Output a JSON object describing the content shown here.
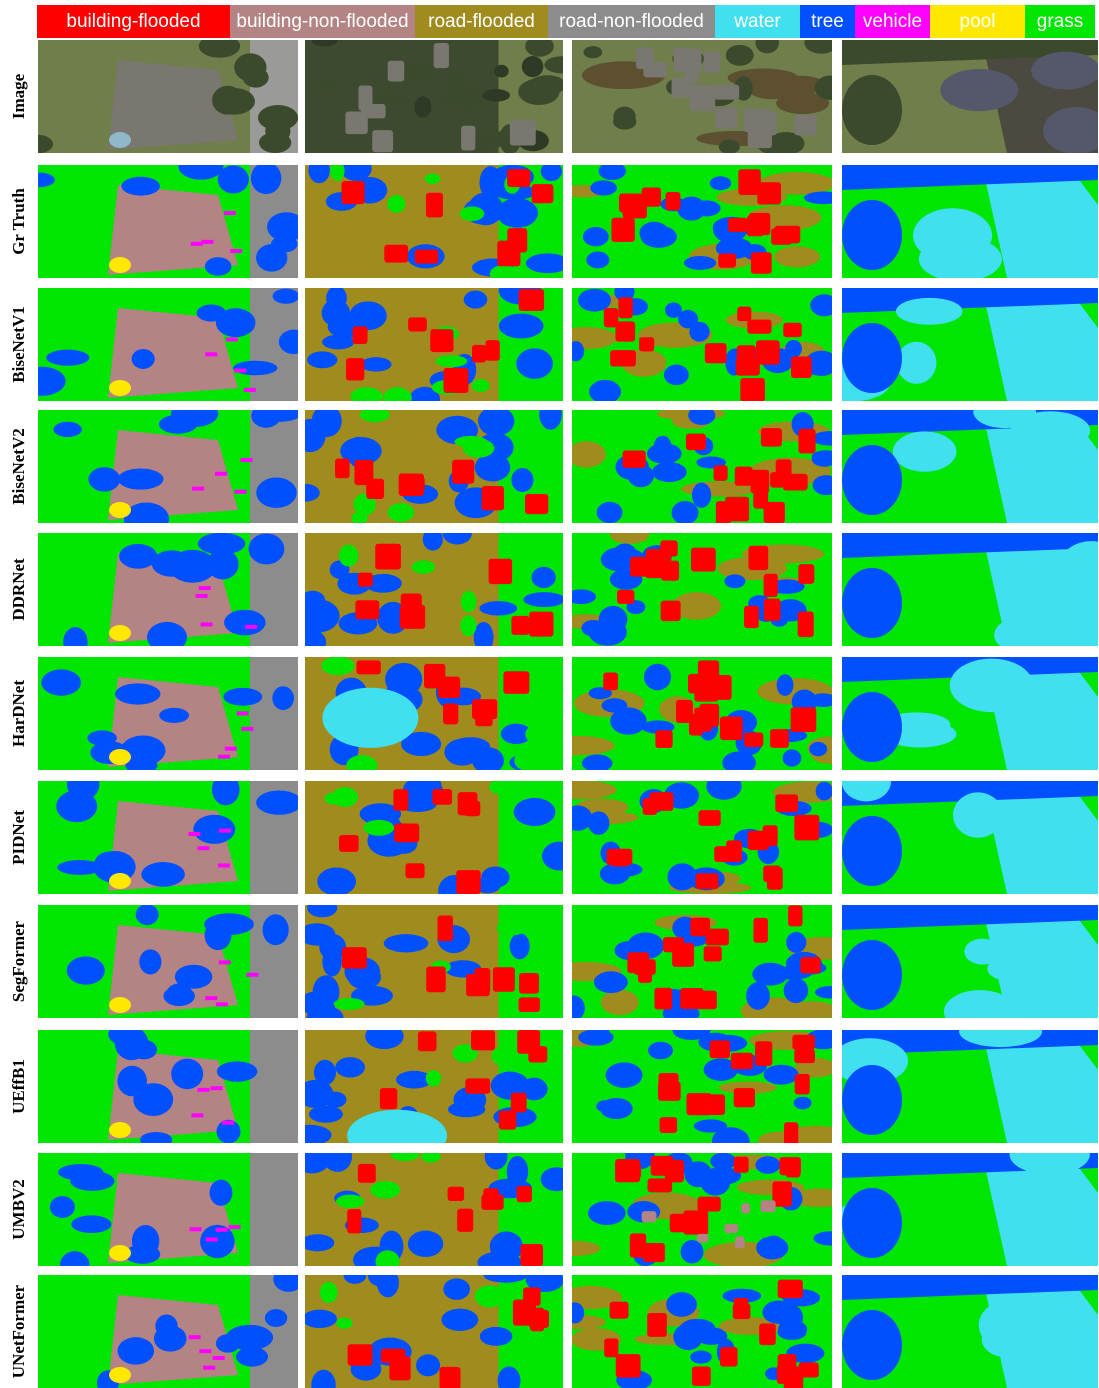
{
  "legend": [
    {
      "label": "building-flooded",
      "color": "#ff0000"
    },
    {
      "label": "building-non-flooded",
      "color": "#b48484"
    },
    {
      "label": "road-flooded",
      "color": "#a08c1e"
    },
    {
      "label": "road-non-flooded",
      "color": "#8c8c8c"
    },
    {
      "label": "water",
      "color": "#40e0f0"
    },
    {
      "label": "tree",
      "color": "#0050ff"
    },
    {
      "label": "vehicle",
      "color": "#ff00ff"
    },
    {
      "label": "pool",
      "color": "#ffe800"
    },
    {
      "label": "grass",
      "color": "#00e600"
    }
  ],
  "rows": [
    "Image",
    "Gr Truth",
    "BiseNetV1",
    "BiseNetV2",
    "DDRNet",
    "HarDNet",
    "PIDNet",
    "SegFormer",
    "UEffB1",
    "UMBV2",
    "UNetFormer"
  ]
}
